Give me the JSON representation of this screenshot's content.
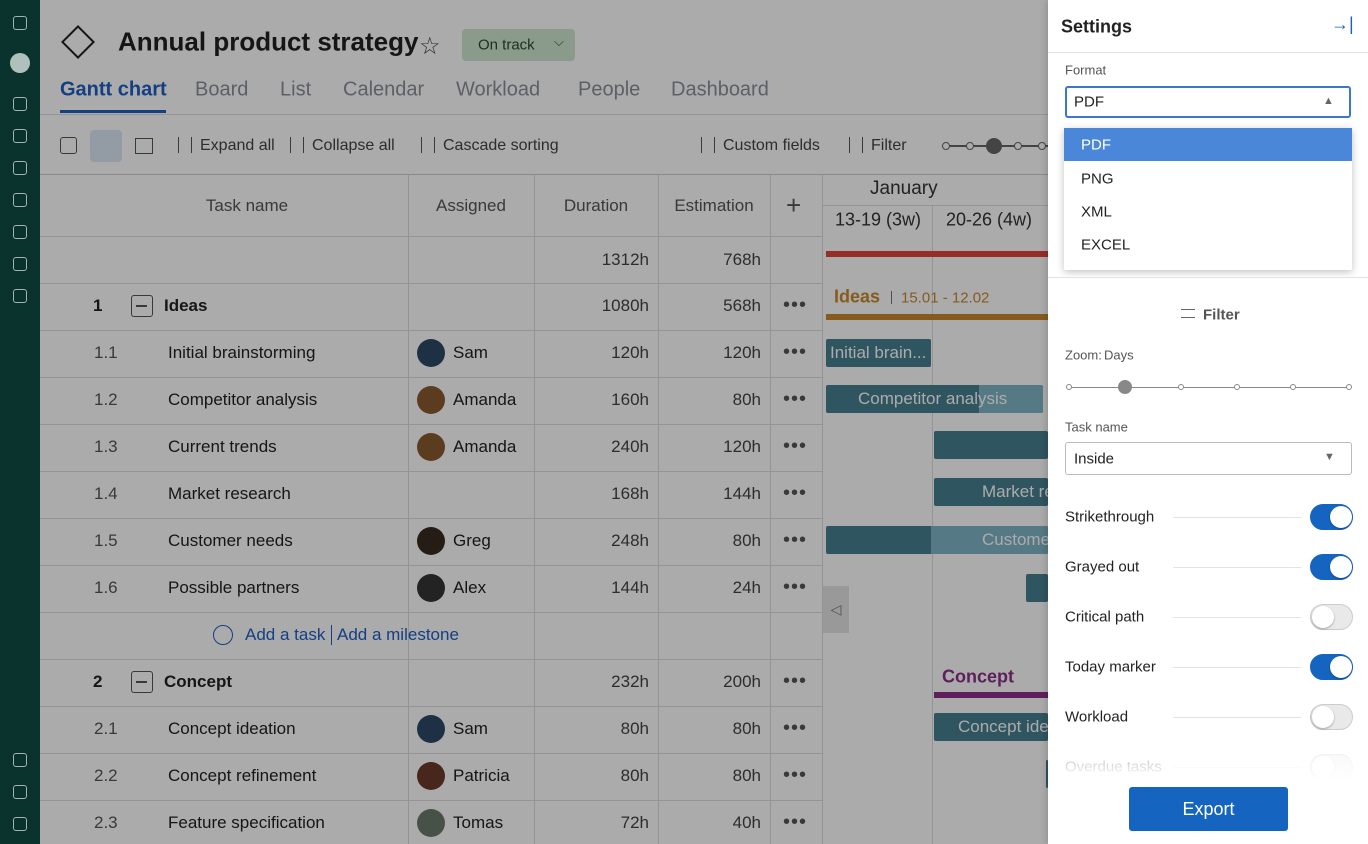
{
  "header": {
    "title": "Annual product strategy",
    "status": "On track"
  },
  "tabs": [
    "Gantt chart",
    "Board",
    "List",
    "Calendar",
    "Workload",
    "People",
    "Dashboard"
  ],
  "toolbar": {
    "expand": "Expand all",
    "collapse": "Collapse all",
    "sorting": "Cascade sorting",
    "custom_fields": "Custom fields",
    "filter": "Filter"
  },
  "table": {
    "columns": [
      "Task name",
      "Assigned",
      "Duration",
      "Estimation"
    ],
    "total": {
      "duration": "1312h",
      "estimation": "768h"
    },
    "add_task": "Add a task",
    "add_milestone": "Add a milestone",
    "groups": [
      {
        "id": "1",
        "name": "Ideas",
        "duration": "1080h",
        "estimation": "568h",
        "tasks": [
          {
            "id": "1.1",
            "name": "Initial brainstorming",
            "assigned": "Sam",
            "duration": "120h",
            "estimation": "120h"
          },
          {
            "id": "1.2",
            "name": "Competitor analysis",
            "assigned": "Amanda",
            "duration": "160h",
            "estimation": "80h"
          },
          {
            "id": "1.3",
            "name": "Current trends",
            "assigned": "Amanda",
            "duration": "240h",
            "estimation": "120h"
          },
          {
            "id": "1.4",
            "name": "Market research",
            "duration": "168h",
            "estimation": "144h"
          },
          {
            "id": "1.5",
            "name": "Customer needs",
            "assigned": "Greg",
            "duration": "248h",
            "estimation": "80h"
          },
          {
            "id": "1.6",
            "name": "Possible partners",
            "assigned": "Alex",
            "duration": "144h",
            "estimation": "24h"
          }
        ]
      },
      {
        "id": "2",
        "name": "Concept",
        "duration": "232h",
        "estimation": "200h",
        "tasks": [
          {
            "id": "2.1",
            "name": "Concept ideation",
            "assigned": "Sam",
            "duration": "80h",
            "estimation": "80h"
          },
          {
            "id": "2.2",
            "name": "Concept refinement",
            "assigned": "Patricia",
            "duration": "80h",
            "estimation": "80h"
          },
          {
            "id": "2.3",
            "name": "Feature specification",
            "assigned": "Tomas",
            "duration": "72h",
            "estimation": "40h"
          }
        ]
      }
    ]
  },
  "gantt": {
    "month": "January",
    "weeks": [
      "13-19 (3w)",
      "20-26 (4w)"
    ],
    "group_labels": [
      {
        "name": "Ideas",
        "dates": "15.01 - 12.02"
      },
      {
        "name": "Concept"
      }
    ],
    "bar_labels": [
      "Initial brain...",
      "Competitor analysis",
      "Market re",
      "Custome",
      "Concept ide"
    ]
  },
  "settings": {
    "title": "Settings",
    "format_label": "Format",
    "format_value": "PDF",
    "format_options": [
      "PDF",
      "PNG",
      "XML",
      "EXCEL"
    ],
    "filter": "Filter",
    "zoom_label": "Zoom:",
    "zoom_value": "Days",
    "task_name_label": "Task name",
    "task_name_value": "Inside",
    "toggles": [
      {
        "label": "Strikethrough",
        "on": true
      },
      {
        "label": "Grayed out",
        "on": true
      },
      {
        "label": "Critical path",
        "on": false
      },
      {
        "label": "Today marker",
        "on": true
      },
      {
        "label": "Workload",
        "on": false
      },
      {
        "label": "Overdue tasks",
        "on": false
      }
    ],
    "export": "Export"
  }
}
